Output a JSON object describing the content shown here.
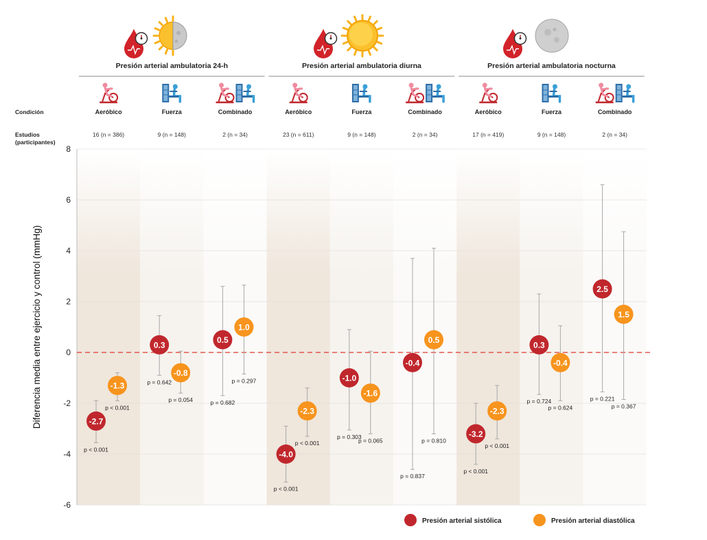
{
  "chart_data": {
    "type": "scatter",
    "ylabel": "Diferencia media entre ejercicio y control (mmHg)",
    "ylim": [
      -6,
      8
    ],
    "yticks": [
      -6,
      -4,
      -2,
      0,
      2,
      4,
      6,
      8
    ],
    "reference_line": 0,
    "row_labels": {
      "condition": "Condición",
      "studies_line1": "Estudios",
      "studies_line2": "(participantes)"
    },
    "groups": [
      {
        "title": "Presión arterial ambulatoria 24-h",
        "icon": "sun-moon-icon",
        "conditions": [
          {
            "label": "Aeróbico",
            "icon": "bike-icon",
            "studies": "16 (n = 386)",
            "sys": {
              "value": -2.7,
              "label": "-2.7",
              "ci": [
                -3.55,
                -1.9
              ],
              "p": "p < 0.001"
            },
            "dia": {
              "value": -1.3,
              "label": "-1.3",
              "ci": [
                -1.9,
                -0.8
              ],
              "p": "p < 0.001"
            }
          },
          {
            "label": "Fuerza",
            "icon": "weights-icon",
            "studies": "9 (n = 148)",
            "sys": {
              "value": 0.3,
              "label": "0.3",
              "ci": [
                -0.9,
                1.45
              ],
              "p": "p = 0.642"
            },
            "dia": {
              "value": -0.8,
              "label": "-0.8",
              "ci": [
                -1.6,
                0.05
              ],
              "p": "p = 0.054"
            }
          },
          {
            "label": "Combinado",
            "icon": "bike-weights-icon",
            "studies": "2 (n = 34)",
            "sys": {
              "value": 0.5,
              "label": "0.5",
              "ci": [
                -1.7,
                2.6
              ],
              "p": "p = 0.682"
            },
            "dia": {
              "value": 1.0,
              "label": "1.0",
              "ci": [
                -0.85,
                2.65
              ],
              "p": "p = 0.297"
            }
          }
        ]
      },
      {
        "title": "Presión arterial ambulatoria diurna",
        "icon": "sun-icon",
        "conditions": [
          {
            "label": "Aeróbico",
            "icon": "bike-icon",
            "studies": "23 (n = 611)",
            "sys": {
              "value": -4.0,
              "label": "-4.0",
              "ci": [
                -5.1,
                -2.9
              ],
              "p": "p < 0.001"
            },
            "dia": {
              "value": -2.3,
              "label": "-2.3",
              "ci": [
                -3.3,
                -1.4
              ],
              "p": "p < 0.001"
            }
          },
          {
            "label": "Fuerza",
            "icon": "weights-icon",
            "studies": "9 (n = 148)",
            "sys": {
              "value": -1.0,
              "label": "-1.0",
              "ci": [
                -3.05,
                0.9
              ],
              "p": "p = 0.303"
            },
            "dia": {
              "value": -1.6,
              "label": "-1.6",
              "ci": [
                -3.2,
                0.05
              ],
              "p": "p = 0.065"
            }
          },
          {
            "label": "Combinado",
            "icon": "bike-weights-icon",
            "studies": "2 (n = 34)",
            "sys": {
              "value": -0.4,
              "label": "-0.4",
              "ci": [
                -4.6,
                3.7
              ],
              "p": "p = 0.837"
            },
            "dia": {
              "value": 0.5,
              "label": "0.5",
              "ci": [
                -3.2,
                4.1
              ],
              "p": "p = 0.810"
            }
          }
        ]
      },
      {
        "title": "Presión arterial ambulatoria nocturna",
        "icon": "moon-icon",
        "conditions": [
          {
            "label": "Aeróbico",
            "icon": "bike-icon",
            "studies": "17 (n = 419)",
            "sys": {
              "value": -3.2,
              "label": "-3.2",
              "ci": [
                -4.4,
                -2.0
              ],
              "p": "p < 0.001"
            },
            "dia": {
              "value": -2.3,
              "label": "-2.3",
              "ci": [
                -3.4,
                -1.3
              ],
              "p": "p < 0.001"
            }
          },
          {
            "label": "Fuerza",
            "icon": "weights-icon",
            "studies": "9 (n = 148)",
            "sys": {
              "value": 0.3,
              "label": "0.3",
              "ci": [
                -1.65,
                2.3
              ],
              "p": "p = 0.724"
            },
            "dia": {
              "value": -0.4,
              "label": "-0.4",
              "ci": [
                -1.9,
                1.05
              ],
              "p": "p = 0.624"
            }
          },
          {
            "label": "Combinado",
            "icon": "bike-weights-icon",
            "studies": "2 (n = 34)",
            "sys": {
              "value": 2.5,
              "label": "2.5",
              "ci": [
                -1.55,
                6.6
              ],
              "p": "p = 0.221"
            },
            "dia": {
              "value": 1.5,
              "label": "1.5",
              "ci": [
                -1.85,
                4.75
              ],
              "p": "p = 0.367"
            }
          }
        ]
      }
    ],
    "legend": [
      {
        "name": "Presión arterial sistólica",
        "color": "#c0272d"
      },
      {
        "name": "Presión arterial diastólica",
        "color": "#f7941d"
      }
    ],
    "colors": {
      "systolic": "#c0272d",
      "diastolic": "#f7941d",
      "reference": "#e2574c",
      "whisker": "#a8a8a8",
      "band_dark": "#efe6dc",
      "band_light": "#f6f3ee",
      "band_white": "#fbfaf8"
    },
    "legend_position": "bottom-right"
  }
}
